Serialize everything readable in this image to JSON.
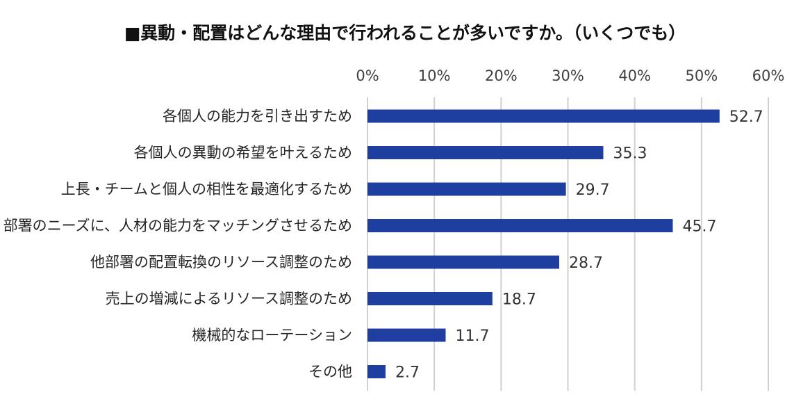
{
  "chart_data": {
    "type": "bar",
    "orientation": "horizontal",
    "title": "■異動・配置はどんな理由で行われることが多いですか。（いくつでも）",
    "xlabel": "",
    "ylabel": "",
    "xlim": [
      0,
      60
    ],
    "ticks": [
      0,
      10,
      20,
      30,
      40,
      50,
      60
    ],
    "tick_labels": [
      "0%",
      "10%",
      "20%",
      "30%",
      "40%",
      "50%",
      "60%"
    ],
    "tick_position": "top",
    "grid": true,
    "legend": "none",
    "bar_color": "#1f3fa0",
    "grid_color": "#d0d0d0",
    "categories": [
      "各個人の能力を引き出すため",
      "各個人の異動の希望を叶えるため",
      "上長・チームと個人の相性を最適化するため",
      "部署のニーズに、人材の能力をマッチングさせるため",
      "他部署の配置転換のリソース調整のため",
      "売上の増減によるリソース調整のため",
      "機械的なローテーション",
      "その他"
    ],
    "values": [
      52.7,
      35.3,
      29.7,
      45.7,
      28.7,
      18.7,
      11.7,
      2.7
    ],
    "value_labels": [
      "52.7",
      "35.3",
      "29.7",
      "45.7",
      "28.7",
      "18.7",
      "11.7",
      "2.7"
    ]
  }
}
